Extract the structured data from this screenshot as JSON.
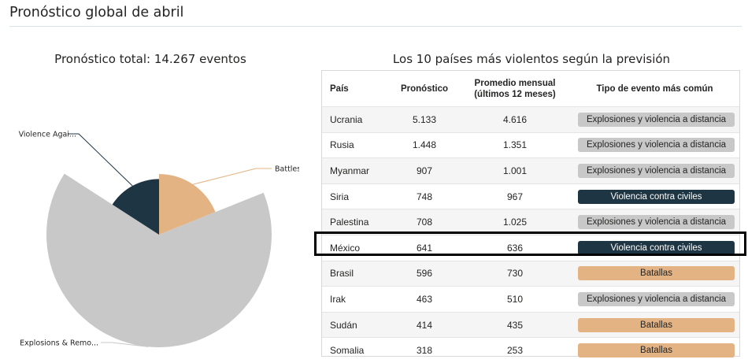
{
  "page_title": "Pronóstico global de abril",
  "chart_data": [
    {
      "type": "pie",
      "title": "Pronóstico total: 14.267 eventos",
      "variant": "radial-extent rose (radius varies by value)",
      "slices": [
        {
          "label": "Battles",
          "value": 2700,
          "color": "#e3b384"
        },
        {
          "label": "Explosions & Remo...",
          "value": 9300,
          "color": "#c8c8c8"
        },
        {
          "label": "Violence Agai...",
          "value": 2267,
          "color": "#1e3543"
        }
      ],
      "legend": "none (outside slice labels)"
    },
    {
      "type": "table",
      "title": "Los 10 países más violentos según la previsión",
      "columns": [
        "País",
        "Pronóstico",
        "Promedio mensual (últimos 12 meses)",
        "Tipo de evento más común"
      ],
      "rows": [
        {
          "country": "Ucrania",
          "forecast": "5.133",
          "avg": "4.616",
          "event": "Explosiones y violencia a distancia",
          "kind": "exp"
        },
        {
          "country": "Rusia",
          "forecast": "1.448",
          "avg": "1.351",
          "event": "Explosiones y violencia a distancia",
          "kind": "exp"
        },
        {
          "country": "Myanmar",
          "forecast": "907",
          "avg": "1.001",
          "event": "Explosiones y violencia a distancia",
          "kind": "exp"
        },
        {
          "country": "Siria",
          "forecast": "748",
          "avg": "967",
          "event": "Violencia contra civiles",
          "kind": "vio"
        },
        {
          "country": "Palestina",
          "forecast": "708",
          "avg": "1.025",
          "event": "Explosiones y violencia a distancia",
          "kind": "exp"
        },
        {
          "country": "México",
          "forecast": "641",
          "avg": "636",
          "event": "Violencia contra civiles",
          "kind": "vio",
          "highlighted": true
        },
        {
          "country": "Brasil",
          "forecast": "596",
          "avg": "730",
          "event": "Batallas",
          "kind": "bat"
        },
        {
          "country": "Irak",
          "forecast": "463",
          "avg": "510",
          "event": "Explosiones y violencia a distancia",
          "kind": "exp"
        },
        {
          "country": "Sudán",
          "forecast": "414",
          "avg": "435",
          "event": "Batallas",
          "kind": "bat"
        },
        {
          "country": "Somalia",
          "forecast": "318",
          "avg": "253",
          "event": "Batallas",
          "kind": "bat"
        }
      ]
    }
  ],
  "table": {
    "headers": {
      "country": "País",
      "forecast": "Pronóstico",
      "avg_line1": "Promedio mensual",
      "avg_line2": "(últimos 12 meses)",
      "event": "Tipo de evento más común"
    }
  }
}
